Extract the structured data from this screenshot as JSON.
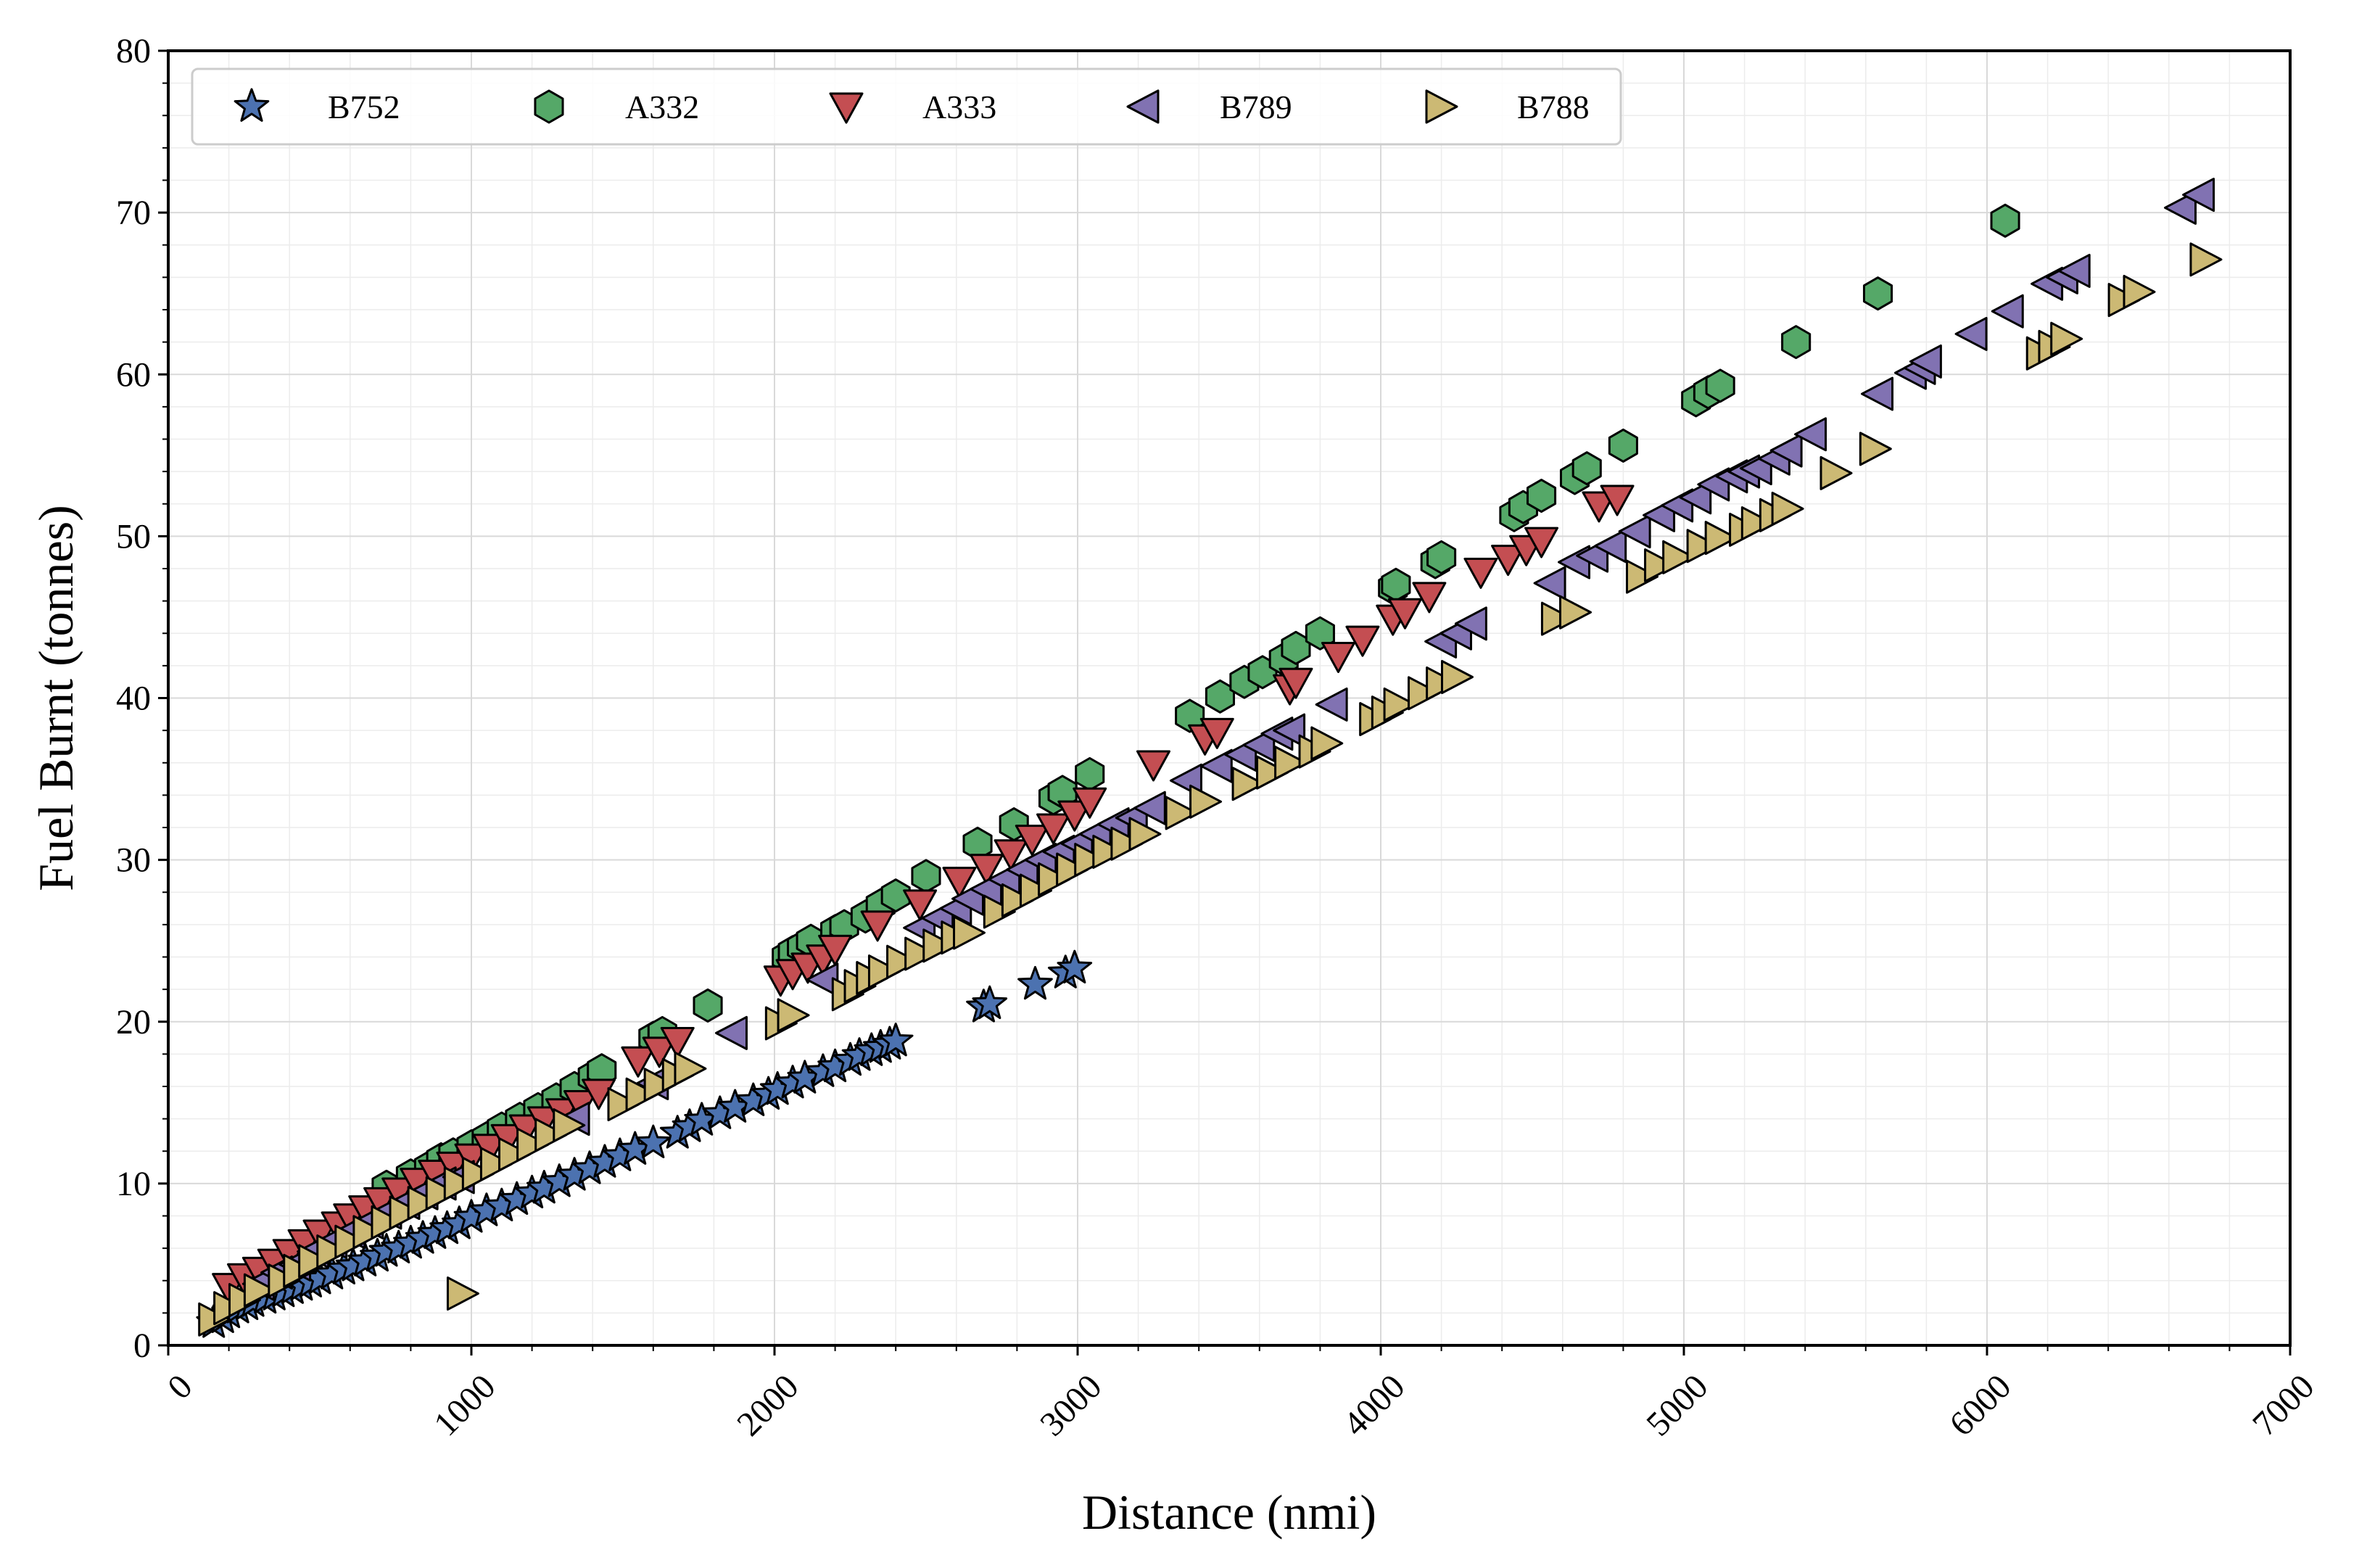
{
  "chart_data": {
    "type": "scatter",
    "title": "",
    "xlabel": "Distance (nmi)",
    "ylabel": "Fuel Burnt (tonnes)",
    "xlim": [
      0,
      7000
    ],
    "ylim": [
      0,
      80
    ],
    "xticks": [
      "0",
      "1000",
      "2000",
      "3000",
      "4000",
      "5000",
      "6000",
      "7000"
    ],
    "yticks": [
      "0",
      "10",
      "20",
      "30",
      "40",
      "50",
      "60",
      "70",
      "80"
    ],
    "x_tick_rotation": 45,
    "grid": true,
    "minor_grid": true,
    "legend": "top-left",
    "legend_columns": 5,
    "series": [
      {
        "name": "B752",
        "marker": "star",
        "color": "#4c72b0",
        "x": [
          150,
          180,
          200,
          230,
          260,
          280,
          320,
          350,
          380,
          410,
          440,
          470,
          500,
          540,
          580,
          610,
          650,
          690,
          720,
          760,
          800,
          840,
          880,
          920,
          960,
          1000,
          1050,
          1100,
          1150,
          1200,
          1240,
          1290,
          1340,
          1390,
          1440,
          1490,
          1540,
          1600,
          1680,
          1720,
          1760,
          1820,
          1870,
          1930,
          1980,
          2010,
          2060,
          2100,
          2160,
          2200,
          2250,
          2280,
          2320,
          2350,
          2380,
          2400,
          2690,
          2710,
          2860,
          2960,
          2990
        ],
        "y": [
          1.4,
          1.7,
          2.0,
          2.3,
          2.5,
          2.7,
          2.9,
          3.1,
          3.3,
          3.5,
          3.7,
          3.9,
          4.1,
          4.4,
          4.7,
          4.9,
          5.2,
          5.5,
          5.8,
          6.0,
          6.3,
          6.6,
          6.9,
          7.2,
          7.5,
          7.9,
          8.3,
          8.6,
          9.0,
          9.4,
          9.7,
          10.1,
          10.5,
          10.9,
          11.3,
          11.7,
          12.1,
          12.5,
          13.1,
          13.5,
          13.9,
          14.3,
          14.7,
          15.1,
          15.5,
          15.8,
          16.2,
          16.5,
          16.9,
          17.2,
          17.6,
          17.9,
          18.2,
          18.4,
          18.6,
          18.8,
          20.9,
          21.1,
          22.3,
          23.0,
          23.3
        ]
      },
      {
        "name": "A332",
        "marker": "hexagon",
        "color": "#55a868",
        "x": [
          720,
          800,
          860,
          900,
          940,
          1000,
          1050,
          1100,
          1160,
          1220,
          1280,
          1340,
          1400,
          1430,
          1600,
          1630,
          1780,
          2040,
          2060,
          2090,
          2120,
          2200,
          2230,
          2300,
          2350,
          2400,
          2500,
          2670,
          2790,
          2920,
          2950,
          3040,
          3370,
          3470,
          3550,
          3610,
          3680,
          3720,
          3800,
          4040,
          4050,
          4180,
          4200,
          4440,
          4470,
          4530,
          4640,
          4680,
          4800,
          5040,
          5080,
          5120,
          5370,
          5640,
          6060
        ],
        "y": [
          9.8,
          10.5,
          11.0,
          11.5,
          11.8,
          12.3,
          12.8,
          13.4,
          14.0,
          14.6,
          15.2,
          15.9,
          16.6,
          17.0,
          19.0,
          19.3,
          21.0,
          24.0,
          24.3,
          24.6,
          25.0,
          25.6,
          25.9,
          26.5,
          27.2,
          27.8,
          29.0,
          31.0,
          32.2,
          33.8,
          34.2,
          35.3,
          38.9,
          40.1,
          41.0,
          41.6,
          42.4,
          43.1,
          44.0,
          46.8,
          47.0,
          48.4,
          48.7,
          51.3,
          51.8,
          52.5,
          53.6,
          54.2,
          55.6,
          58.4,
          58.9,
          59.3,
          62.0,
          65.0,
          69.5
        ]
      },
      {
        "name": "A333",
        "marker": "triangle-down",
        "color": "#c44e52",
        "x": [
          200,
          250,
          300,
          350,
          400,
          450,
          500,
          560,
          600,
          650,
          700,
          760,
          820,
          880,
          940,
          1000,
          1060,
          1120,
          1180,
          1240,
          1300,
          1360,
          1420,
          1550,
          1620,
          1680,
          2020,
          2060,
          2110,
          2160,
          2200,
          2340,
          2480,
          2610,
          2700,
          2780,
          2850,
          2920,
          2990,
          3040,
          3250,
          3420,
          3460,
          3700,
          3720,
          3860,
          3940,
          4040,
          4080,
          4160,
          4330,
          4420,
          4480,
          4530,
          4720,
          4780
        ],
        "y": [
          3.6,
          4.2,
          4.6,
          5.1,
          5.7,
          6.3,
          6.9,
          7.4,
          7.9,
          8.4,
          8.9,
          9.5,
          10.1,
          10.6,
          11.1,
          11.6,
          12.2,
          12.8,
          13.4,
          13.9,
          14.4,
          14.9,
          15.6,
          17.6,
          18.2,
          18.8,
          22.6,
          23.0,
          23.4,
          23.9,
          24.5,
          26.0,
          27.3,
          28.7,
          29.5,
          30.4,
          31.3,
          32.0,
          32.8,
          33.6,
          35.9,
          37.5,
          37.9,
          40.6,
          41.0,
          42.6,
          43.6,
          44.9,
          45.3,
          46.3,
          47.8,
          48.6,
          49.2,
          49.7,
          51.9,
          52.3
        ]
      },
      {
        "name": "B789",
        "marker": "triangle-left",
        "color": "#8172b2",
        "x": [
          300,
          360,
          420,
          480,
          540,
          600,
          660,
          720,
          780,
          840,
          900,
          960,
          1340,
          1600,
          1860,
          2160,
          2480,
          2540,
          2600,
          2640,
          2700,
          2760,
          2820,
          2880,
          2940,
          3000,
          3060,
          3120,
          3180,
          3240,
          3360,
          3460,
          3540,
          3600,
          3660,
          3700,
          3840,
          4200,
          4250,
          4300,
          4560,
          4640,
          4700,
          4760,
          4840,
          4920,
          4980,
          5040,
          5100,
          5160,
          5200,
          5240,
          5300,
          5340,
          5420,
          5640,
          5750,
          5780,
          5800,
          5950,
          6070,
          6200,
          6250,
          6290,
          6640,
          6700
        ],
        "y": [
          3.8,
          4.5,
          5.0,
          5.8,
          6.4,
          7.0,
          7.6,
          8.2,
          8.8,
          9.4,
          10.0,
          10.4,
          14.0,
          16.2,
          19.3,
          22.6,
          25.8,
          26.4,
          27.0,
          27.6,
          28.2,
          28.8,
          29.4,
          30.0,
          30.5,
          31.0,
          31.6,
          32.2,
          32.6,
          33.2,
          34.9,
          35.8,
          36.5,
          37.1,
          37.8,
          38.0,
          39.6,
          43.5,
          44.0,
          44.6,
          47.1,
          48.4,
          48.8,
          49.4,
          50.3,
          51.3,
          51.9,
          52.4,
          53.2,
          53.7,
          54.0,
          54.2,
          54.8,
          55.3,
          56.3,
          58.8,
          60.1,
          60.4,
          60.8,
          62.5,
          63.9,
          65.6,
          66.0,
          66.4,
          70.3,
          71.1
        ],
        "note": ""
      },
      {
        "name": "B788",
        "marker": "triangle-right",
        "color": "#ccb974",
        "x": [
          150,
          200,
          250,
          300,
          380,
          430,
          480,
          540,
          600,
          660,
          720,
          780,
          840,
          900,
          960,
          1020,
          1080,
          1140,
          1200,
          1260,
          1320,
          1500,
          1560,
          1620,
          1680,
          1720,
          2020,
          2060,
          2240,
          2280,
          2320,
          2360,
          2420,
          2480,
          2540,
          2600,
          2640,
          2740,
          2800,
          2860,
          2920,
          2980,
          3040,
          3100,
          3160,
          3220,
          3340,
          3420,
          3560,
          3640,
          3700,
          3780,
          3820,
          3980,
          4020,
          4060,
          4140,
          4200,
          4250,
          4580,
          4640,
          4860,
          4920,
          4980,
          5060,
          5120,
          5200,
          5240,
          5300,
          5340,
          5500,
          5630,
          6180,
          6220,
          6260,
          6450,
          6500,
          6720
        ],
        "y": [
          1.6,
          2.3,
          2.8,
          3.4,
          4.0,
          4.6,
          5.2,
          5.8,
          6.4,
          7.0,
          7.6,
          8.2,
          8.8,
          9.4,
          10.0,
          10.6,
          11.2,
          11.8,
          12.4,
          13.0,
          13.6,
          14.9,
          15.5,
          16.1,
          16.7,
          17.1,
          19.9,
          20.4,
          21.7,
          22.2,
          22.7,
          23.1,
          23.7,
          24.2,
          24.7,
          25.2,
          25.5,
          26.8,
          27.5,
          28.1,
          28.8,
          29.4,
          30.0,
          30.5,
          31.0,
          31.6,
          32.9,
          33.6,
          34.7,
          35.4,
          36.0,
          36.7,
          37.2,
          38.7,
          39.1,
          39.6,
          40.3,
          40.9,
          41.3,
          44.9,
          45.3,
          47.5,
          48.2,
          48.7,
          49.4,
          49.9,
          50.4,
          50.8,
          51.3,
          51.7,
          53.9,
          55.4,
          61.3,
          61.7,
          62.2,
          64.6,
          65.1,
          67.1
        ]
      },
      {
        "name": "",
        "marker": "triangle-right",
        "color": "#ccb974",
        "x": [
          970
        ],
        "y": [
          3.2
        ],
        "legend": false
      }
    ]
  }
}
